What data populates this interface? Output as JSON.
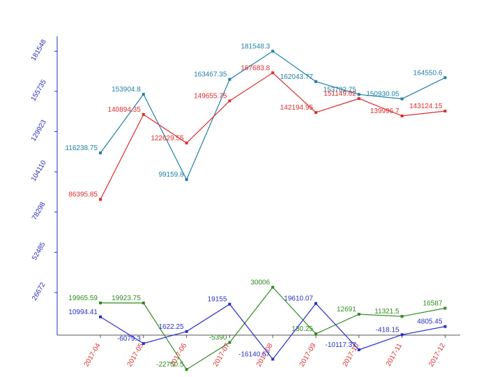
{
  "chart_data": {
    "type": "line",
    "title": "",
    "xlabel": "",
    "ylabel": "",
    "categories": [
      "2017-04",
      "2017-05",
      "2017-06",
      "2017-07",
      "2017-08",
      "2017-09",
      "2017-10",
      "2017-11",
      "2017-12"
    ],
    "y_ticks": [
      "26672",
      "52485",
      "78298",
      "104110",
      "129923",
      "155735",
      "181548"
    ],
    "ylim": [
      -24000,
      192000
    ],
    "grid": false,
    "colors": {
      "axis": "#2a2fb8",
      "xtick": "#e03030"
    },
    "series": [
      {
        "color": "#1f7fa8",
        "values": [
          116238.75,
          153904.8,
          99159.8,
          163467.35,
          181548.3,
          162043.77,
          153782.75,
          150930.05,
          164550.6
        ],
        "labels": [
          "116238.75",
          "153904.8",
          "99159.8",
          "163467.35",
          "181548.3",
          "162043.77",
          "153782.75",
          "150930.05",
          "164550.6"
        ]
      },
      {
        "color": "#e02b2b",
        "values": [
          86395.85,
          140894.35,
          122629.55,
          149655.75,
          167683.8,
          142194.95,
          151149.62,
          139996.7,
          143124.15
        ],
        "labels": [
          "86395.85",
          "140894.35",
          "122629.55",
          "149655.75",
          "167683.8",
          "142194.95",
          "151149.62",
          "139996.7",
          "143124.15"
        ]
      },
      {
        "color": "#2e8b1e",
        "values": [
          19965.59,
          19923.75,
          -22750.5,
          -5390,
          30006,
          130.25,
          12691,
          11321.5,
          16587
        ],
        "labels": [
          "19965.59",
          "19923.75",
          "-22750.5",
          "-5390",
          "30006",
          "130.25",
          "12691",
          "11321.5",
          "16587"
        ]
      },
      {
        "color": "#2a2fcc",
        "values": [
          10994.41,
          -6079.3,
          1622.25,
          19155,
          -16140.67,
          19610.07,
          -10117.37,
          -418.15,
          4805.45
        ],
        "labels": [
          "10994.41",
          "-6079.3",
          "1622.25",
          "19155",
          "-16140.67",
          "19610.07",
          "-10117.37",
          "-418.15",
          "4805.45"
        ]
      }
    ]
  }
}
